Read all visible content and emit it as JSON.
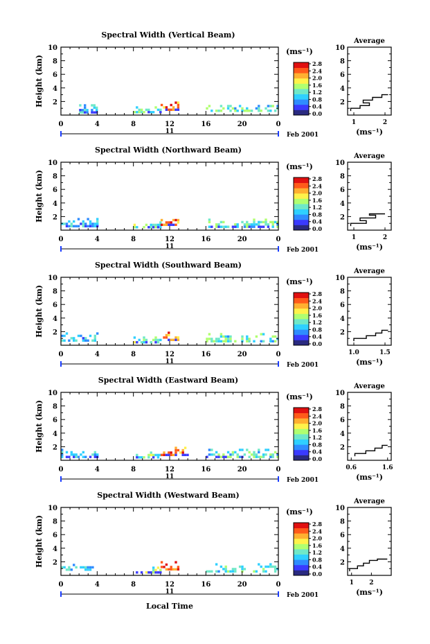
{
  "figure": {
    "footer_label": "Local Time",
    "date_label": "Feb 2001",
    "day_label": "11",
    "unit_label": "(ms⁻¹)",
    "avg_title": "Average",
    "ylabel": "Height (km)",
    "x_ticks": [
      "0",
      "4",
      "8",
      "12",
      "16",
      "20",
      "0"
    ],
    "y_ticks": [
      "2",
      "4",
      "6",
      "8",
      "10"
    ],
    "colorbar_ticks": [
      "0.0",
      "0.4",
      "0.8",
      "1.2",
      "1.6",
      "2.0",
      "2.4",
      "2.8"
    ],
    "colorbar_colors": [
      "#2a2a80",
      "#3a3aff",
      "#2f8cff",
      "#2fd0ff",
      "#6fe8c8",
      "#b0ff70",
      "#fff24a",
      "#ffb030",
      "#ff5a1a",
      "#e01010"
    ]
  },
  "chart_data": [
    {
      "type": "heatmap",
      "title": "Spectral Width (Vertical Beam)",
      "xlabel": "",
      "ylabel": "Height (km)",
      "xlim": [
        0,
        24
      ],
      "ylim": [
        0.5,
        10
      ],
      "colorbar": {
        "label": "(ms⁻¹)",
        "range": [
          0.0,
          2.8
        ]
      },
      "clusters": [
        {
          "x": [
            2,
            4
          ],
          "y": [
            0.5,
            1.6
          ],
          "level": 0.9
        },
        {
          "x": [
            8,
            11
          ],
          "y": [
            0.5,
            1.3
          ],
          "level": 1.3
        },
        {
          "x": [
            11,
            13
          ],
          "y": [
            0.8,
            2.0
          ],
          "level": 2.4
        },
        {
          "x": [
            16,
            24
          ],
          "y": [
            0.5,
            1.5
          ],
          "level": 1.2
        }
      ],
      "average": {
        "xticks": [
          "1",
          "2"
        ],
        "xlim": [
          0.8,
          2.2
        ],
        "heights": [
          0.6,
          1.0,
          1.4,
          1.8,
          2.2,
          2.6,
          3.0
        ],
        "values": [
          0.9,
          1.2,
          1.5,
          1.3,
          1.6,
          1.9,
          2.1
        ],
        "xlabel": "(ms⁻¹)"
      }
    },
    {
      "type": "heatmap",
      "title": "Spectral Width (Northward Beam)",
      "xlabel": "",
      "ylabel": "Height (km)",
      "xlim": [
        0,
        24
      ],
      "ylim": [
        0.5,
        10
      ],
      "colorbar": {
        "label": "(ms⁻¹)",
        "range": [
          0.0,
          2.8
        ]
      },
      "clusters": [
        {
          "x": [
            0,
            4
          ],
          "y": [
            0.6,
            1.8
          ],
          "level": 0.9
        },
        {
          "x": [
            8,
            11
          ],
          "y": [
            0.5,
            1.3
          ],
          "level": 1.3
        },
        {
          "x": [
            11,
            13
          ],
          "y": [
            0.8,
            2.0
          ],
          "level": 2.4
        },
        {
          "x": [
            16,
            24
          ],
          "y": [
            0.5,
            1.7
          ],
          "level": 1.2
        }
      ],
      "average": {
        "xticks": [
          "1",
          "2"
        ],
        "xlim": [
          0.8,
          2.2
        ],
        "heights": [
          0.6,
          1.0,
          1.4,
          1.8,
          2.2,
          2.4
        ],
        "values": [
          0.9,
          1.4,
          1.2,
          1.7,
          1.5,
          2.0
        ],
        "xlabel": "(ms⁻¹)"
      }
    },
    {
      "type": "heatmap",
      "title": "Spectral Width (Southward Beam)",
      "xlabel": "",
      "ylabel": "Height (km)",
      "xlim": [
        0,
        24
      ],
      "ylim": [
        0.5,
        10
      ],
      "colorbar": {
        "label": "(ms⁻¹)",
        "range": [
          0.0,
          2.8
        ]
      },
      "clusters": [
        {
          "x": [
            0,
            4
          ],
          "y": [
            0.6,
            1.9
          ],
          "level": 0.9
        },
        {
          "x": [
            8,
            11
          ],
          "y": [
            0.5,
            1.3
          ],
          "level": 1.3
        },
        {
          "x": [
            11,
            13
          ],
          "y": [
            0.8,
            2.0
          ],
          "level": 2.4
        },
        {
          "x": [
            16,
            24
          ],
          "y": [
            0.5,
            1.8
          ],
          "level": 1.2
        }
      ],
      "average": {
        "xticks": [
          "1.0",
          "1.5"
        ],
        "xlim": [
          0.9,
          1.6
        ],
        "heights": [
          0.6,
          1.0,
          1.4,
          1.8,
          2.2
        ],
        "values": [
          1.0,
          1.2,
          1.35,
          1.45,
          1.55
        ],
        "xlabel": "(ms⁻¹)"
      }
    },
    {
      "type": "heatmap",
      "title": "Spectral Width (Eastward Beam)",
      "xlabel": "",
      "ylabel": "Height (km)",
      "xlim": [
        0,
        24
      ],
      "ylim": [
        0.5,
        10
      ],
      "colorbar": {
        "label": "(ms⁻¹)",
        "range": [
          0.0,
          2.8
        ]
      },
      "clusters": [
        {
          "x": [
            0,
            4
          ],
          "y": [
            0.6,
            1.7
          ],
          "level": 0.9
        },
        {
          "x": [
            8,
            11
          ],
          "y": [
            0.5,
            1.3
          ],
          "level": 1.3
        },
        {
          "x": [
            11,
            14
          ],
          "y": [
            0.8,
            2.0
          ],
          "level": 2.4
        },
        {
          "x": [
            16,
            24
          ],
          "y": [
            0.5,
            1.7
          ],
          "level": 1.2
        }
      ],
      "average": {
        "xticks": [
          "0.6",
          "1.6"
        ],
        "xlim": [
          0.5,
          1.7
        ],
        "heights": [
          0.6,
          1.0,
          1.4,
          1.8,
          2.2
        ],
        "values": [
          0.7,
          1.0,
          1.25,
          1.45,
          1.6
        ],
        "xlabel": "(ms⁻¹)"
      }
    },
    {
      "type": "heatmap",
      "title": "Spectral Width (Westward Beam)",
      "xlabel": "Local Time",
      "ylabel": "Height (km)",
      "xlim": [
        0,
        24
      ],
      "ylim": [
        0.5,
        10
      ],
      "colorbar": {
        "label": "(ms⁻¹)",
        "range": [
          0.0,
          2.8
        ]
      },
      "clusters": [
        {
          "x": [
            0,
            4
          ],
          "y": [
            0.7,
            1.7
          ],
          "level": 0.9
        },
        {
          "x": [
            8,
            11
          ],
          "y": [
            0.5,
            1.3
          ],
          "level": 1.3
        },
        {
          "x": [
            11,
            13
          ],
          "y": [
            0.8,
            2.1
          ],
          "level": 2.4
        },
        {
          "x": [
            16,
            24
          ],
          "y": [
            0.5,
            1.8
          ],
          "level": 1.2
        }
      ],
      "average": {
        "xticks": [
          "1",
          "2"
        ],
        "xlim": [
          0.8,
          3.0
        ],
        "heights": [
          0.6,
          1.0,
          1.4,
          1.8,
          2.2,
          2.4
        ],
        "values": [
          0.9,
          1.3,
          1.6,
          1.9,
          2.3,
          2.8
        ],
        "xlabel": "(ms⁻¹)"
      }
    }
  ]
}
